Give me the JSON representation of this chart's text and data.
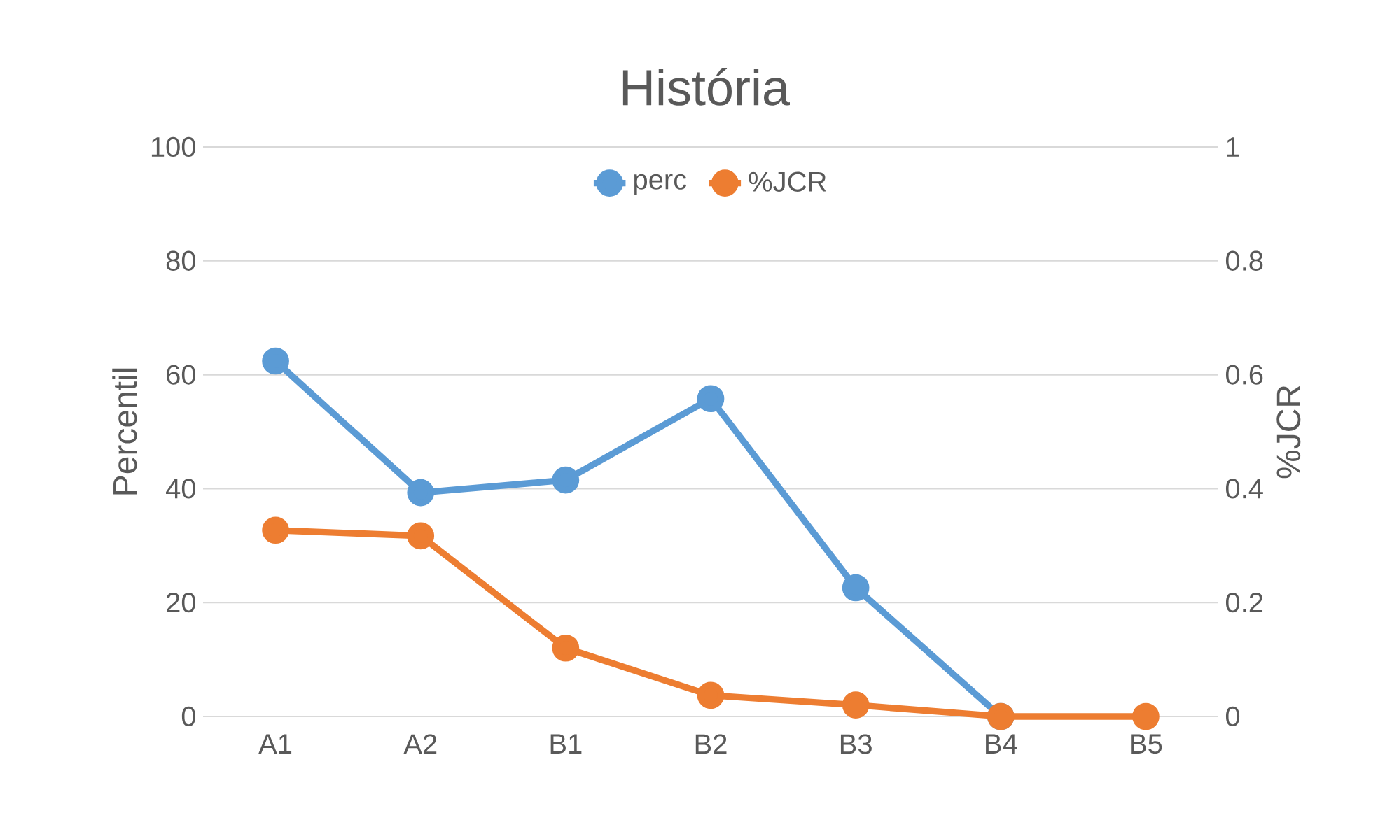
{
  "chart_data": {
    "type": "line",
    "title": "História",
    "ylabel": "Percentil",
    "y2label": "%JCR",
    "categories": [
      "A1",
      "A2",
      "B1",
      "B2",
      "B3",
      "B4",
      "B5"
    ],
    "series": [
      {
        "name": "perc",
        "color": "#5b9bd5",
        "values": [
          62.4,
          39.3,
          41.5,
          55.8,
          22.6,
          0,
          null
        ]
      },
      {
        "name": "%JCR",
        "color": "#ed7d31",
        "axis": "y2",
        "values": [
          0.327,
          0.317,
          0.12,
          0.037,
          0.02,
          0,
          0
        ]
      }
    ],
    "ylim": [
      0,
      100
    ],
    "yticks": [
      0,
      20,
      40,
      60,
      80,
      100
    ],
    "y2lim": [
      0,
      1
    ],
    "y2ticks": [
      0,
      0.2,
      0.4,
      0.6,
      0.8,
      1
    ],
    "grid": "y",
    "legend": "top",
    "marker": "circle"
  }
}
